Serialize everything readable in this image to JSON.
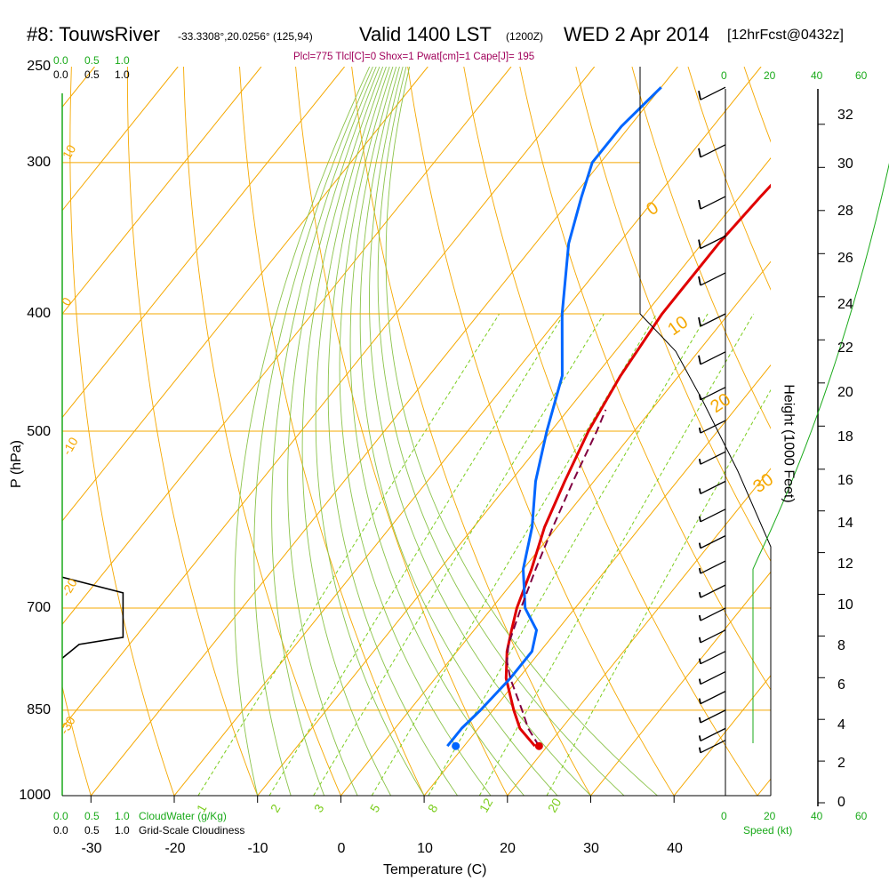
{
  "header": {
    "station": "#8: TouwsRiver",
    "coords": "-33.3308°,20.0256° (125,94)",
    "valid": "Valid 1400 LST",
    "zulu": "(1200Z)",
    "date": "WED 2 Apr 2014",
    "forecast": "[12hrFcst@0432z]"
  },
  "info_line": "Plcl=775 Tlcl[C]=0 Shox=1 Pwat[cm]=1 Cape[J]= 195",
  "colors": {
    "temperature": "#e00000",
    "dewpoint": "#0066ff",
    "parcel": "#800040",
    "isotherm": "#f5a800",
    "dry_adiabat": "#8bc34a",
    "mixing_ratio": "#7ccd1e",
    "green_text": "#1aaa1a",
    "info_text": "#a0005a"
  },
  "cloud_scale": {
    "green_labels": [
      "0.0",
      "0.5",
      "1.0"
    ],
    "black_labels": [
      "0.0",
      "0.5",
      "1.0"
    ],
    "cloudwater_label": "CloudWater (g/Kg)",
    "cloudiness_label": "Grid-Scale Cloudiness"
  },
  "speed_scale": {
    "labels": [
      "0",
      "20",
      "40",
      "60"
    ],
    "label": "Speed (kt)"
  },
  "isotherm_labels": [
    "10",
    "0",
    "-10",
    "-20",
    "-30",
    "0",
    "10",
    "20",
    "30"
  ],
  "mixing_ratio_labels": [
    "1",
    "2",
    "3",
    "5",
    "8",
    "12",
    "20"
  ],
  "chart_data": {
    "type": "skew-t",
    "xlabel": "Temperature (C)",
    "ylabel": "P (hPa)",
    "y2label": "Height (1000 Feet)",
    "x_ticks": [
      -30,
      -20,
      -10,
      0,
      10,
      20,
      30,
      40
    ],
    "p_ticks": [
      250,
      300,
      400,
      500,
      700,
      850,
      1000
    ],
    "height_ticks": [
      0,
      2,
      4,
      6,
      8,
      10,
      12,
      14,
      16,
      18,
      20,
      22,
      24,
      26,
      28,
      30,
      32
    ],
    "surface": {
      "pressure": 910,
      "temperature": 19,
      "dewpoint": 9
    },
    "series": [
      {
        "points": [
          [
            910,
            18.5
          ],
          [
            880,
            15
          ],
          [
            850,
            12.5
          ],
          [
            800,
            8.5
          ],
          [
            760,
            6
          ],
          [
            730,
            4.5
          ],
          [
            700,
            3
          ],
          [
            650,
            1
          ],
          [
            600,
            -1.5
          ],
          [
            550,
            -3.5
          ],
          [
            500,
            -5.5
          ],
          [
            450,
            -7
          ],
          [
            400,
            -8
          ],
          [
            350,
            -8
          ],
          [
            320,
            -7.5
          ],
          [
            300,
            -7
          ],
          [
            270,
            -6
          ],
          [
            260,
            -5.5
          ]
        ]
      },
      {
        "points": [
          [
            910,
            8
          ],
          [
            880,
            8
          ],
          [
            850,
            8.5
          ],
          [
            800,
            9
          ],
          [
            760,
            9
          ],
          [
            730,
            7.5
          ],
          [
            700,
            4
          ],
          [
            650,
            0
          ],
          [
            600,
            -3
          ],
          [
            550,
            -7
          ],
          [
            500,
            -10.5
          ],
          [
            450,
            -14
          ],
          [
            400,
            -20
          ],
          [
            350,
            -26
          ],
          [
            320,
            -29
          ],
          [
            300,
            -31
          ],
          [
            280,
            -31
          ],
          [
            260,
            -30
          ]
        ]
      },
      {
        "points": [
          [
            910,
            19
          ],
          [
            880,
            16
          ],
          [
            850,
            13.5
          ],
          [
            800,
            9
          ],
          [
            775,
            7
          ],
          [
            750,
            5.5
          ],
          [
            700,
            3.5
          ],
          [
            650,
            1.5
          ],
          [
            600,
            -0.5
          ],
          [
            550,
            -2.5
          ],
          [
            500,
            -4.5
          ],
          [
            480,
            -5.5
          ]
        ]
      }
    ],
    "wind_barbs_kt": [
      [
        260,
        10
      ],
      [
        290,
        10
      ],
      [
        320,
        10
      ],
      [
        345,
        10
      ],
      [
        370,
        10
      ],
      [
        400,
        10
      ],
      [
        430,
        10
      ],
      [
        460,
        5
      ],
      [
        490,
        5
      ],
      [
        520,
        5
      ],
      [
        550,
        5
      ],
      [
        580,
        5
      ],
      [
        610,
        5
      ],
      [
        640,
        5
      ],
      [
        670,
        5
      ],
      [
        700,
        5
      ],
      [
        730,
        5
      ],
      [
        760,
        5
      ],
      [
        790,
        5
      ],
      [
        820,
        5
      ],
      [
        850,
        5
      ],
      [
        880,
        5
      ],
      [
        900,
        5
      ]
    ],
    "cloudiness_profile": [
      [
        660,
        0
      ],
      [
        680,
        0.72
      ],
      [
        700,
        0.72
      ],
      [
        740,
        0.72
      ],
      [
        750,
        0.2
      ],
      [
        770,
        0
      ]
    ]
  }
}
